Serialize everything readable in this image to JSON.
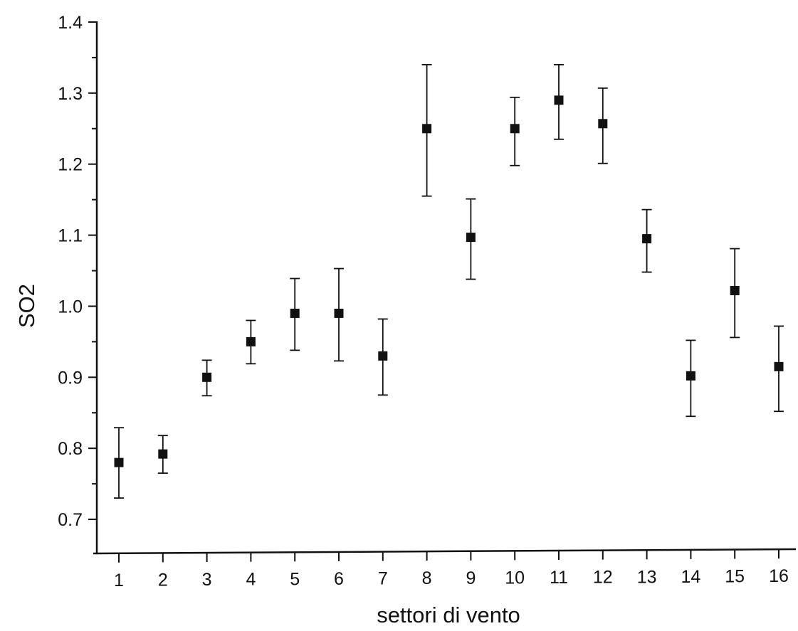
{
  "colors": {
    "ink": "#111111",
    "background": "#ffffff"
  },
  "chart_data": {
    "type": "scatter",
    "title": "",
    "xlabel": "settori di vento",
    "ylabel": "SO2",
    "xlim": [
      0.5,
      16.5
    ],
    "ylim": [
      0.65,
      1.4
    ],
    "x_ticks": [
      "1",
      "2",
      "3",
      "4",
      "5",
      "6",
      "7",
      "8",
      "9",
      "10",
      "11",
      "12",
      "13",
      "14",
      "15",
      "16"
    ],
    "y_ticks": [
      "0.7",
      "0.8",
      "0.9",
      "1.0",
      "1.1",
      "1.2",
      "1.3",
      "1.4"
    ],
    "grid": false,
    "legend": "none",
    "marker": "filled-square",
    "error_bars": true,
    "series": [
      {
        "x": [
          1,
          2,
          3,
          4,
          5,
          6,
          7,
          8,
          9,
          10,
          11,
          12,
          13,
          14,
          15,
          16
        ],
        "y": [
          0.78,
          0.792,
          0.9,
          0.95,
          0.99,
          0.99,
          0.93,
          1.25,
          1.097,
          1.25,
          1.29,
          1.257,
          1.095,
          0.902,
          1.022,
          0.915
        ],
        "y_upper": [
          0.829,
          0.818,
          0.924,
          0.98,
          1.039,
          1.053,
          0.982,
          1.34,
          1.151,
          1.294,
          1.34,
          1.307,
          1.136,
          0.952,
          1.081,
          0.972
        ],
        "y_lower": [
          0.73,
          0.765,
          0.874,
          0.919,
          0.938,
          0.923,
          0.875,
          1.155,
          1.038,
          1.198,
          1.235,
          1.201,
          1.048,
          0.845,
          0.956,
          0.852
        ]
      }
    ]
  }
}
